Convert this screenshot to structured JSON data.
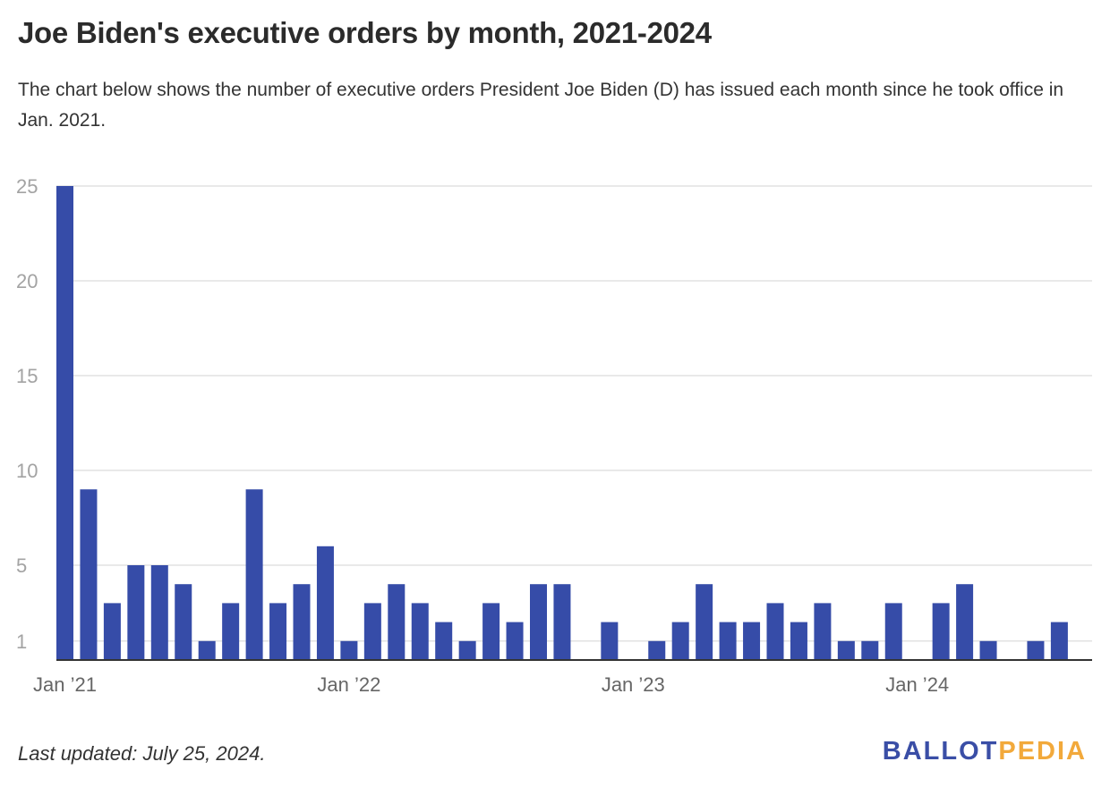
{
  "header": {
    "title": "Joe Biden's executive orders by month, 2021-2024",
    "subtitle": "The chart below shows the number of executive orders President Joe Biden (D) has issued each month since he took office in Jan. 2021."
  },
  "footer": {
    "note": "Last updated: July 25, 2024.",
    "logo_part1": "BALLOT",
    "logo_part2": "PEDIA"
  },
  "colors": {
    "bar": "#364ca8",
    "grid": "#e2e2e2",
    "axis": "#333333",
    "tick_text": "#a3a3a3",
    "x_tick_text": "#666666",
    "logo_primary": "#3a4ea6",
    "logo_accent": "#f2a93b"
  },
  "chart_data": {
    "type": "bar",
    "categories": [
      "Jan 2021",
      "Feb 2021",
      "Mar 2021",
      "Apr 2021",
      "May 2021",
      "Jun 2021",
      "Jul 2021",
      "Aug 2021",
      "Sep 2021",
      "Oct 2021",
      "Nov 2021",
      "Dec 2021",
      "Jan 2022",
      "Feb 2022",
      "Mar 2022",
      "Apr 2022",
      "May 2022",
      "Jun 2022",
      "Jul 2022",
      "Aug 2022",
      "Sep 2022",
      "Oct 2022",
      "Nov 2022",
      "Dec 2022",
      "Jan 2023",
      "Feb 2023",
      "Mar 2023",
      "Apr 2023",
      "May 2023",
      "Jun 2023",
      "Jul 2023",
      "Aug 2023",
      "Sep 2023",
      "Oct 2023",
      "Nov 2023",
      "Dec 2023",
      "Jan 2024",
      "Feb 2024",
      "Mar 2024",
      "Apr 2024",
      "May 2024",
      "Jun 2024",
      "Jul 2024"
    ],
    "values": [
      25,
      9,
      3,
      5,
      5,
      4,
      1,
      3,
      9,
      3,
      4,
      6,
      1,
      3,
      4,
      3,
      2,
      1,
      3,
      2,
      4,
      4,
      0,
      2,
      0,
      1,
      2,
      4,
      2,
      2,
      3,
      2,
      3,
      1,
      1,
      3,
      0,
      3,
      4,
      1,
      0,
      1,
      2
    ],
    "ylim": [
      0,
      25
    ],
    "yticks": [
      1,
      5,
      10,
      15,
      20,
      25
    ],
    "xticks": [
      {
        "index": 0,
        "label": "Jan ’21"
      },
      {
        "index": 12,
        "label": "Jan ’22"
      },
      {
        "index": 24,
        "label": "Jan ’23"
      },
      {
        "index": 36,
        "label": "Jan ’24"
      }
    ],
    "xlabel": "",
    "ylabel": "",
    "grid": true,
    "legend": "none"
  }
}
